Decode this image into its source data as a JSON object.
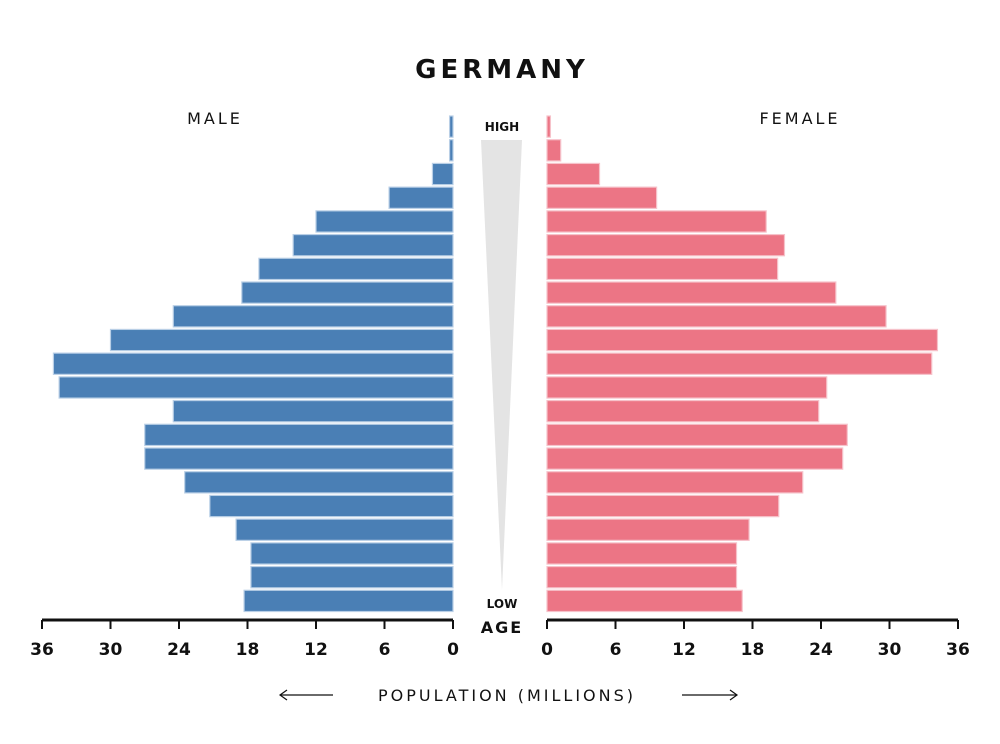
{
  "chart_data": {
    "type": "bar",
    "title": "GERMANY",
    "left_label": "MALE",
    "right_label": "FEMALE",
    "age_high_label": "HIGH",
    "age_low_label": "LOW",
    "age_axis_label": "AGE",
    "xlabel": "POPULATION (MILLIONS)",
    "xlim": [
      0,
      36
    ],
    "x_ticks": [
      0,
      6,
      12,
      18,
      24,
      30,
      36
    ],
    "series": [
      {
        "name": "MALE",
        "color": "#4a7fb5",
        "values": [
          0.3,
          0.3,
          1.8,
          5.6,
          12.0,
          14.0,
          17.0,
          18.5,
          24.5,
          30.0,
          35.0,
          34.5,
          24.5,
          27.0,
          27.0,
          23.5,
          21.3,
          19.0,
          17.7,
          17.7,
          18.3
        ]
      },
      {
        "name": "FEMALE",
        "color": "#ec7585",
        "values": [
          0.3,
          1.2,
          4.6,
          9.6,
          19.2,
          20.8,
          20.2,
          25.3,
          29.7,
          34.2,
          33.7,
          24.5,
          23.8,
          26.3,
          25.9,
          22.4,
          20.3,
          17.7,
          16.6,
          16.6,
          17.1
        ]
      }
    ],
    "grid": false,
    "legend": "none"
  }
}
